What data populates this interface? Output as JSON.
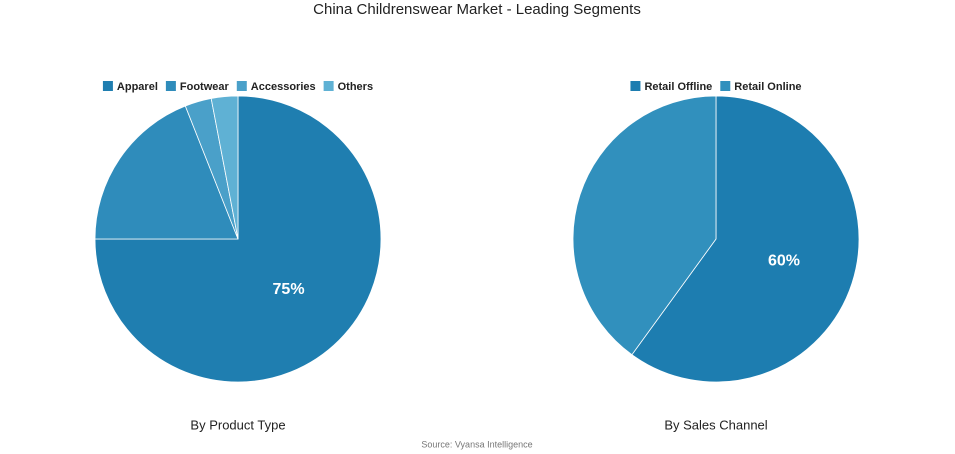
{
  "title": "China Childrenswear Market - Leading Segments",
  "source": "Source: Vyansa Intelligence",
  "chart_data": [
    {
      "type": "pie",
      "title": "By Product Type",
      "categories": [
        "Apparel",
        "Footwear",
        "Accessories",
        "Others"
      ],
      "values": [
        75,
        19,
        3,
        3
      ],
      "value_labels": [
        "75%",
        null,
        null,
        null
      ],
      "colors": [
        "#1f7eb0",
        "#2f8cbb",
        "#4aa0c9",
        "#5fb1d4"
      ],
      "legend": "top"
    },
    {
      "type": "pie",
      "title": "By Sales Channel",
      "categories": [
        "Retail Offline",
        "Retail Online"
      ],
      "values": [
        60,
        40
      ],
      "value_labels": [
        "60%",
        null
      ],
      "colors": [
        "#1d7db0",
        "#3190bd"
      ],
      "legend": "top"
    }
  ]
}
